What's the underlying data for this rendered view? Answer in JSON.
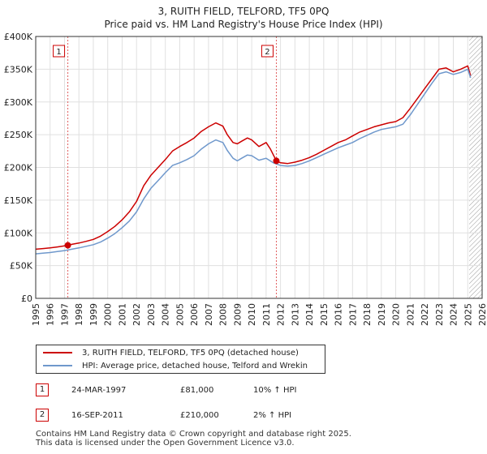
{
  "title_line1": "3, RUITH FIELD, TELFORD, TF5 0PQ",
  "title_line2": "Price paid vs. HM Land Registry's House Price Index (HPI)",
  "chart_data": {
    "type": "line",
    "title": "3, RUITH FIELD, TELFORD, TF5 0PQ — Price paid vs. HM Land Registry's House Price Index (HPI)",
    "xlim": [
      1995,
      2026
    ],
    "ylim": [
      0,
      400000
    ],
    "x_ticks": [
      "1995",
      "1996",
      "1997",
      "1998",
      "1999",
      "2000",
      "2001",
      "2002",
      "2003",
      "2004",
      "2005",
      "2006",
      "2007",
      "2008",
      "2009",
      "2010",
      "2011",
      "2012",
      "2013",
      "2014",
      "2015",
      "2016",
      "2017",
      "2018",
      "2019",
      "2020",
      "2021",
      "2022",
      "2023",
      "2024",
      "2025",
      "2026"
    ],
    "y_ticks": [
      {
        "value": 0,
        "label": "£0"
      },
      {
        "value": 50000,
        "label": "£50K"
      },
      {
        "value": 100000,
        "label": "£100K"
      },
      {
        "value": 150000,
        "label": "£150K"
      },
      {
        "value": 200000,
        "label": "£200K"
      },
      {
        "value": 250000,
        "label": "£250K"
      },
      {
        "value": 300000,
        "label": "£300K"
      },
      {
        "value": 350000,
        "label": "£350K"
      },
      {
        "value": 400000,
        "label": "£400K"
      }
    ],
    "grid": true,
    "hatch_after": 2025.1,
    "series": [
      {
        "name": "3, RUITH FIELD, TELFORD, TF5 0PQ (detached house)",
        "color": "#cc0000",
        "x": [
          1995,
          1995.5,
          1996,
          1996.5,
          1997.23,
          1997.5,
          1998,
          1998.5,
          1999,
          1999.5,
          2000,
          2000.5,
          2001,
          2001.5,
          2002,
          2002.5,
          2003,
          2003.5,
          2004,
          2004.5,
          2005,
          2005.5,
          2006,
          2006.5,
          2007,
          2007.5,
          2008,
          2008.3,
          2008.7,
          2009,
          2009.3,
          2009.7,
          2010,
          2010.5,
          2011,
          2011.3,
          2011.71,
          2012,
          2012.5,
          2013,
          2013.5,
          2014,
          2014.5,
          2015,
          2015.5,
          2016,
          2016.5,
          2017,
          2017.5,
          2018,
          2018.5,
          2019,
          2019.5,
          2020,
          2020.5,
          2021,
          2021.5,
          2022,
          2022.5,
          2023,
          2023.5,
          2024,
          2024.5,
          2025,
          2025.2
        ],
        "y": [
          75000,
          76000,
          77000,
          78500,
          81000,
          82500,
          84500,
          87000,
          90000,
          95000,
          102000,
          110000,
          120000,
          132000,
          148000,
          172000,
          188000,
          200000,
          212000,
          225000,
          232000,
          238000,
          245000,
          255000,
          262000,
          268000,
          263000,
          250000,
          238000,
          236000,
          240000,
          245000,
          242000,
          232000,
          238000,
          228000,
          210000,
          207000,
          206000,
          208000,
          211000,
          215000,
          220000,
          226000,
          232000,
          238000,
          242000,
          248000,
          254000,
          258000,
          262000,
          265000,
          268000,
          270000,
          276000,
          290000,
          305000,
          320000,
          335000,
          350000,
          352000,
          346000,
          350000,
          355000,
          340000
        ]
      },
      {
        "name": "HPI: Average price, detached house, Telford and Wrekin",
        "color": "#6f98cc",
        "x": [
          1995,
          1995.5,
          1996,
          1996.5,
          1997,
          1997.5,
          1998,
          1998.5,
          1999,
          1999.5,
          2000,
          2000.5,
          2001,
          2001.5,
          2002,
          2002.5,
          2003,
          2003.5,
          2004,
          2004.5,
          2005,
          2005.5,
          2006,
          2006.5,
          2007,
          2007.5,
          2008,
          2008.3,
          2008.7,
          2009,
          2009.3,
          2009.7,
          2010,
          2010.5,
          2011,
          2011.5,
          2012,
          2012.5,
          2013,
          2013.5,
          2014,
          2014.5,
          2015,
          2015.5,
          2016,
          2016.5,
          2017,
          2017.5,
          2018,
          2018.5,
          2019,
          2019.5,
          2020,
          2020.5,
          2021,
          2021.5,
          2022,
          2022.5,
          2023,
          2023.5,
          2024,
          2024.5,
          2025,
          2025.2
        ],
        "y": [
          68000,
          69000,
          70000,
          71500,
          73000,
          75000,
          77000,
          79500,
          82000,
          86000,
          92000,
          99000,
          108000,
          118000,
          132000,
          152000,
          168000,
          180000,
          192000,
          203000,
          207000,
          212000,
          218000,
          228000,
          236000,
          242000,
          238000,
          226000,
          214000,
          210000,
          214000,
          219000,
          218000,
          211000,
          214000,
          207000,
          203000,
          202000,
          203000,
          206000,
          210000,
          215000,
          220000,
          225000,
          230000,
          234000,
          238000,
          244000,
          249000,
          254000,
          258000,
          260000,
          262000,
          266000,
          280000,
          296000,
          312000,
          328000,
          343000,
          346000,
          342000,
          345000,
          350000,
          337000
        ]
      }
    ],
    "annotations": [
      {
        "label": "1",
        "x": 1997.23,
        "y": 81000,
        "date": "24-MAR-1997",
        "price": "£81,000",
        "hpi": "10% ↑ HPI"
      },
      {
        "label": "2",
        "x": 2011.71,
        "y": 210000,
        "date": "16-SEP-2011",
        "price": "£210,000",
        "hpi": "2% ↑ HPI"
      }
    ]
  },
  "legend": {
    "line1": "3, RUITH FIELD, TELFORD, TF5 0PQ (detached house)",
    "line2": "HPI: Average price, detached house, Telford and Wrekin"
  },
  "transactions": [
    {
      "num": "1",
      "date": "24-MAR-1997",
      "price": "£81,000",
      "hpi": "10% ↑ HPI"
    },
    {
      "num": "2",
      "date": "16-SEP-2011",
      "price": "£210,000",
      "hpi": "2% ↑ HPI"
    }
  ],
  "footer": {
    "line1": "Contains HM Land Registry data © Crown copyright and database right 2025.",
    "line2": "This data is licensed under the Open Government Licence v3.0."
  },
  "colors": {
    "price": "#cc0000",
    "hpi": "#6f98cc",
    "grid": "#e0e0e0",
    "axis": "#333333"
  }
}
